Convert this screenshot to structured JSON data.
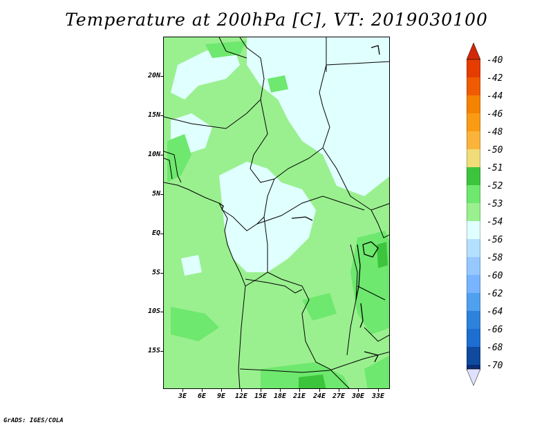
{
  "title": "Temperature at 200hPa [C], VT: 2019030100",
  "footer": "GrADS: IGES/COLA",
  "lat_labels": [
    "20N",
    "15N",
    "10N",
    "5N",
    "EQ",
    "5S",
    "10S",
    "15S"
  ],
  "lon_labels": [
    "3E",
    "6E",
    "9E",
    "12E",
    "15E",
    "18E",
    "21E",
    "24E",
    "27E",
    "30E",
    "33E"
  ],
  "colorbar": {
    "levels": [
      "-40",
      "-42",
      "-44",
      "-46",
      "-48",
      "-50",
      "-51",
      "-52",
      "-53",
      "-54",
      "-56",
      "-58",
      "-60",
      "-62",
      "-64",
      "-66",
      "-68",
      "-70"
    ],
    "colors": [
      "#f0dc78",
      "#ffffbb",
      "#3dc43d",
      "#6ee86e",
      "#9af08f",
      "#e0ffff",
      "#b4e0ff",
      "#96c8ff",
      "#78b4ff",
      "#50a0f0",
      "#2d82dc",
      "#1e6ed2",
      "#1464be",
      "#0f4a9e",
      "#0a2d78"
    ],
    "top_colors": [
      "#e63c00",
      "#f05a00",
      "#f58200",
      "#fa9b14",
      "#fab43c",
      "#f0c85a"
    ],
    "top_arrow_color": "#d2280a",
    "bottom_arrow_color": "#e0e0ff"
  }
}
